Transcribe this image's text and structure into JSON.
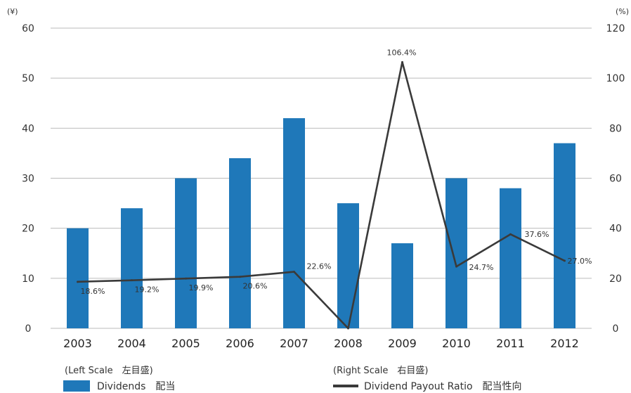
{
  "chart_data": {
    "type": "bar",
    "left_unit": "(¥)",
    "right_unit": "(%)",
    "categories": [
      "2003",
      "2004",
      "2005",
      "2006",
      "2007",
      "2008",
      "2009",
      "2010",
      "2011",
      "2012"
    ],
    "highlight_category": "2012",
    "y_left": {
      "lim": [
        0,
        60
      ],
      "ticks": [
        "0",
        "10",
        "20",
        "30",
        "40",
        "50",
        "60"
      ]
    },
    "y_right": {
      "lim": [
        0,
        120
      ],
      "ticks": [
        "0",
        "20",
        "40",
        "60",
        "80",
        "100",
        "120"
      ]
    },
    "grid": true,
    "series": [
      {
        "name": "Dividends 配当",
        "type": "bar",
        "axis": "left",
        "values": [
          20,
          24,
          30,
          34,
          42,
          25,
          17,
          30,
          28,
          37
        ]
      },
      {
        "name": "Dividend Payout Ratio 配当性向",
        "type": "line",
        "axis": "right",
        "values": [
          18.6,
          19.2,
          19.9,
          20.6,
          22.6,
          0,
          106.4,
          24.7,
          37.6,
          27.0
        ],
        "labels": [
          "18.6%",
          "19.2%",
          "19.9%",
          "20.6%",
          "22.6%",
          "",
          "106.4%",
          "24.7%",
          "37.6%",
          "27.0%"
        ]
      }
    ],
    "legend": {
      "left_caption": "(Left Scale　左目盛)",
      "right_caption": "(Right Scale　右目盛)",
      "bar_label": "Dividends　配当",
      "line_label": "Dividend Payout Ratio　配当性向"
    },
    "colors": {
      "bar": "#1f78b9",
      "line": "#3a3a3a",
      "grid": "#bbbbbb",
      "highlight_text": "#1f78b9"
    }
  }
}
